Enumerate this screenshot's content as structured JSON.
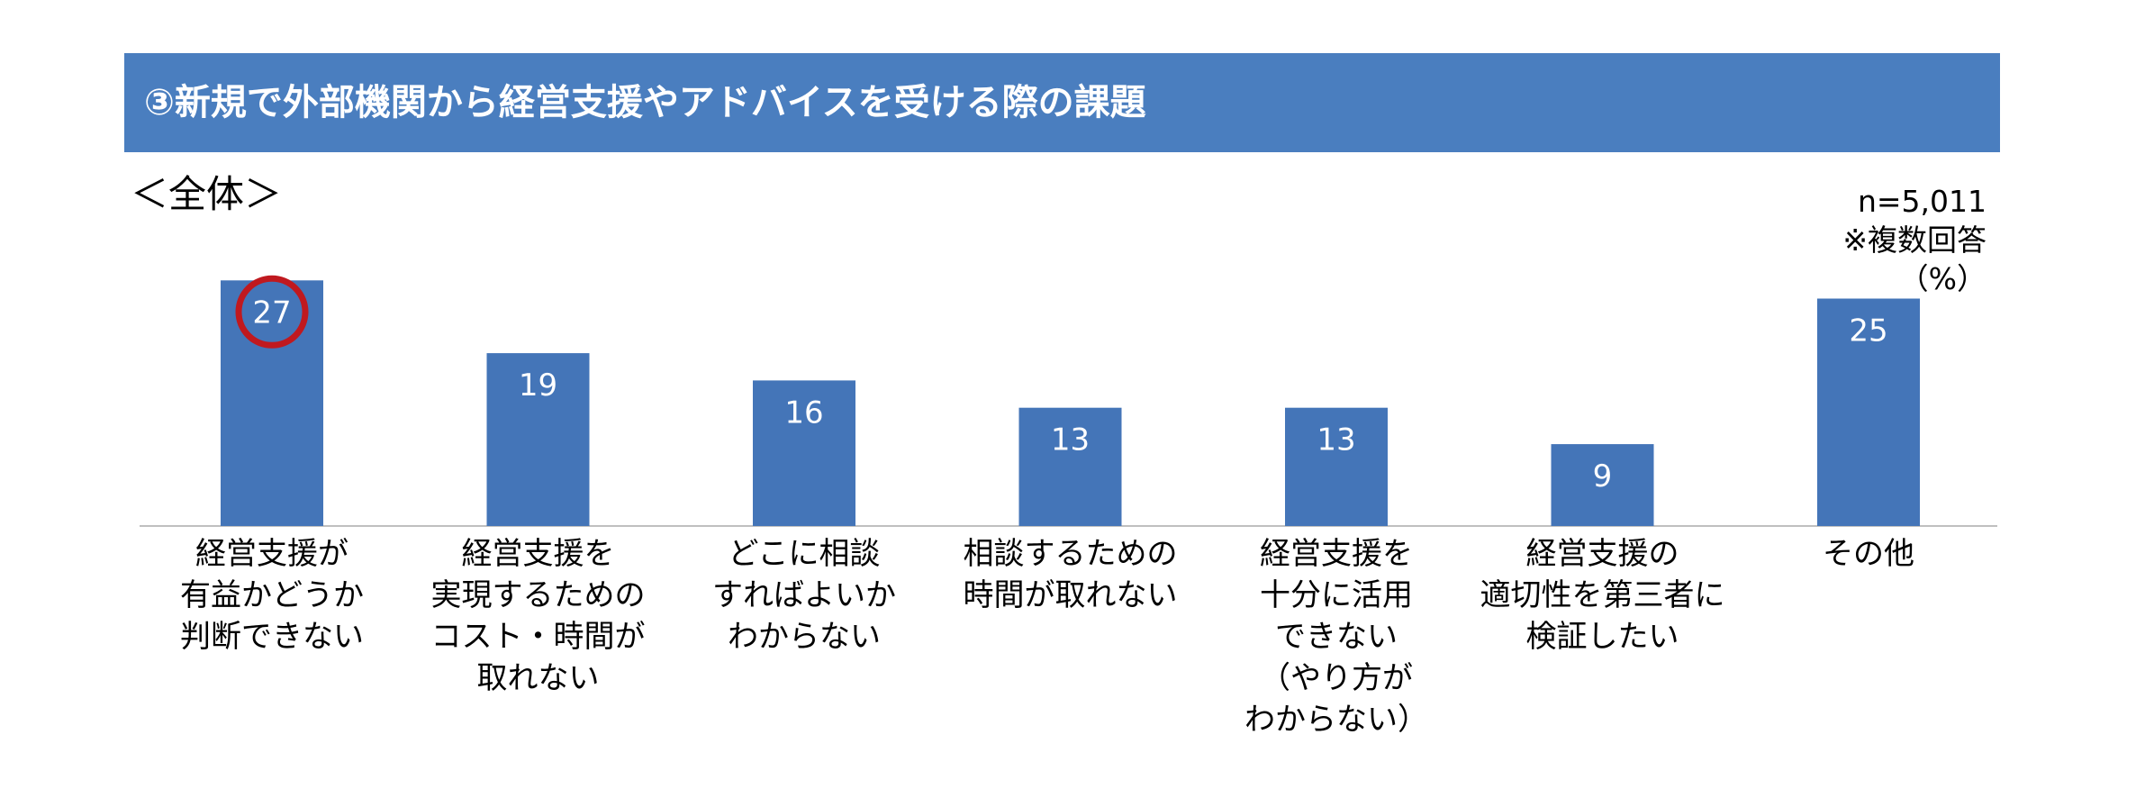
{
  "header": {
    "title": "③新規で外部機関から経営支援やアドバイスを受ける際の課題"
  },
  "scope_label": "＜全体＞",
  "notes": {
    "sample": "n=5,011",
    "multi": "※複数回答",
    "unit": "（%）"
  },
  "colors": {
    "bar": "#4475b8",
    "title_band": "#4a7ebf",
    "highlight_circle": "#c0191f",
    "axis": "#bfbfbf"
  },
  "chart_data": {
    "type": "bar",
    "categories": [
      "経営支援が\n有益かどうか\n判断できない",
      "経営支援を\n実現するための\nコスト・時間が\n取れない",
      "どこに相談\nすればよいか\nわからない",
      "相談するための\n時間が取れない",
      "経営支援を\n十分に活用\nできない\n（やり方が\nわからない）",
      "経営支援の\n適切性を第三者に\n検証したい",
      "その他"
    ],
    "values": [
      27,
      19,
      16,
      13,
      13,
      9,
      25
    ],
    "highlighted_index": 0,
    "ylim": [
      0,
      30
    ],
    "grid": false,
    "data_labels": true
  }
}
